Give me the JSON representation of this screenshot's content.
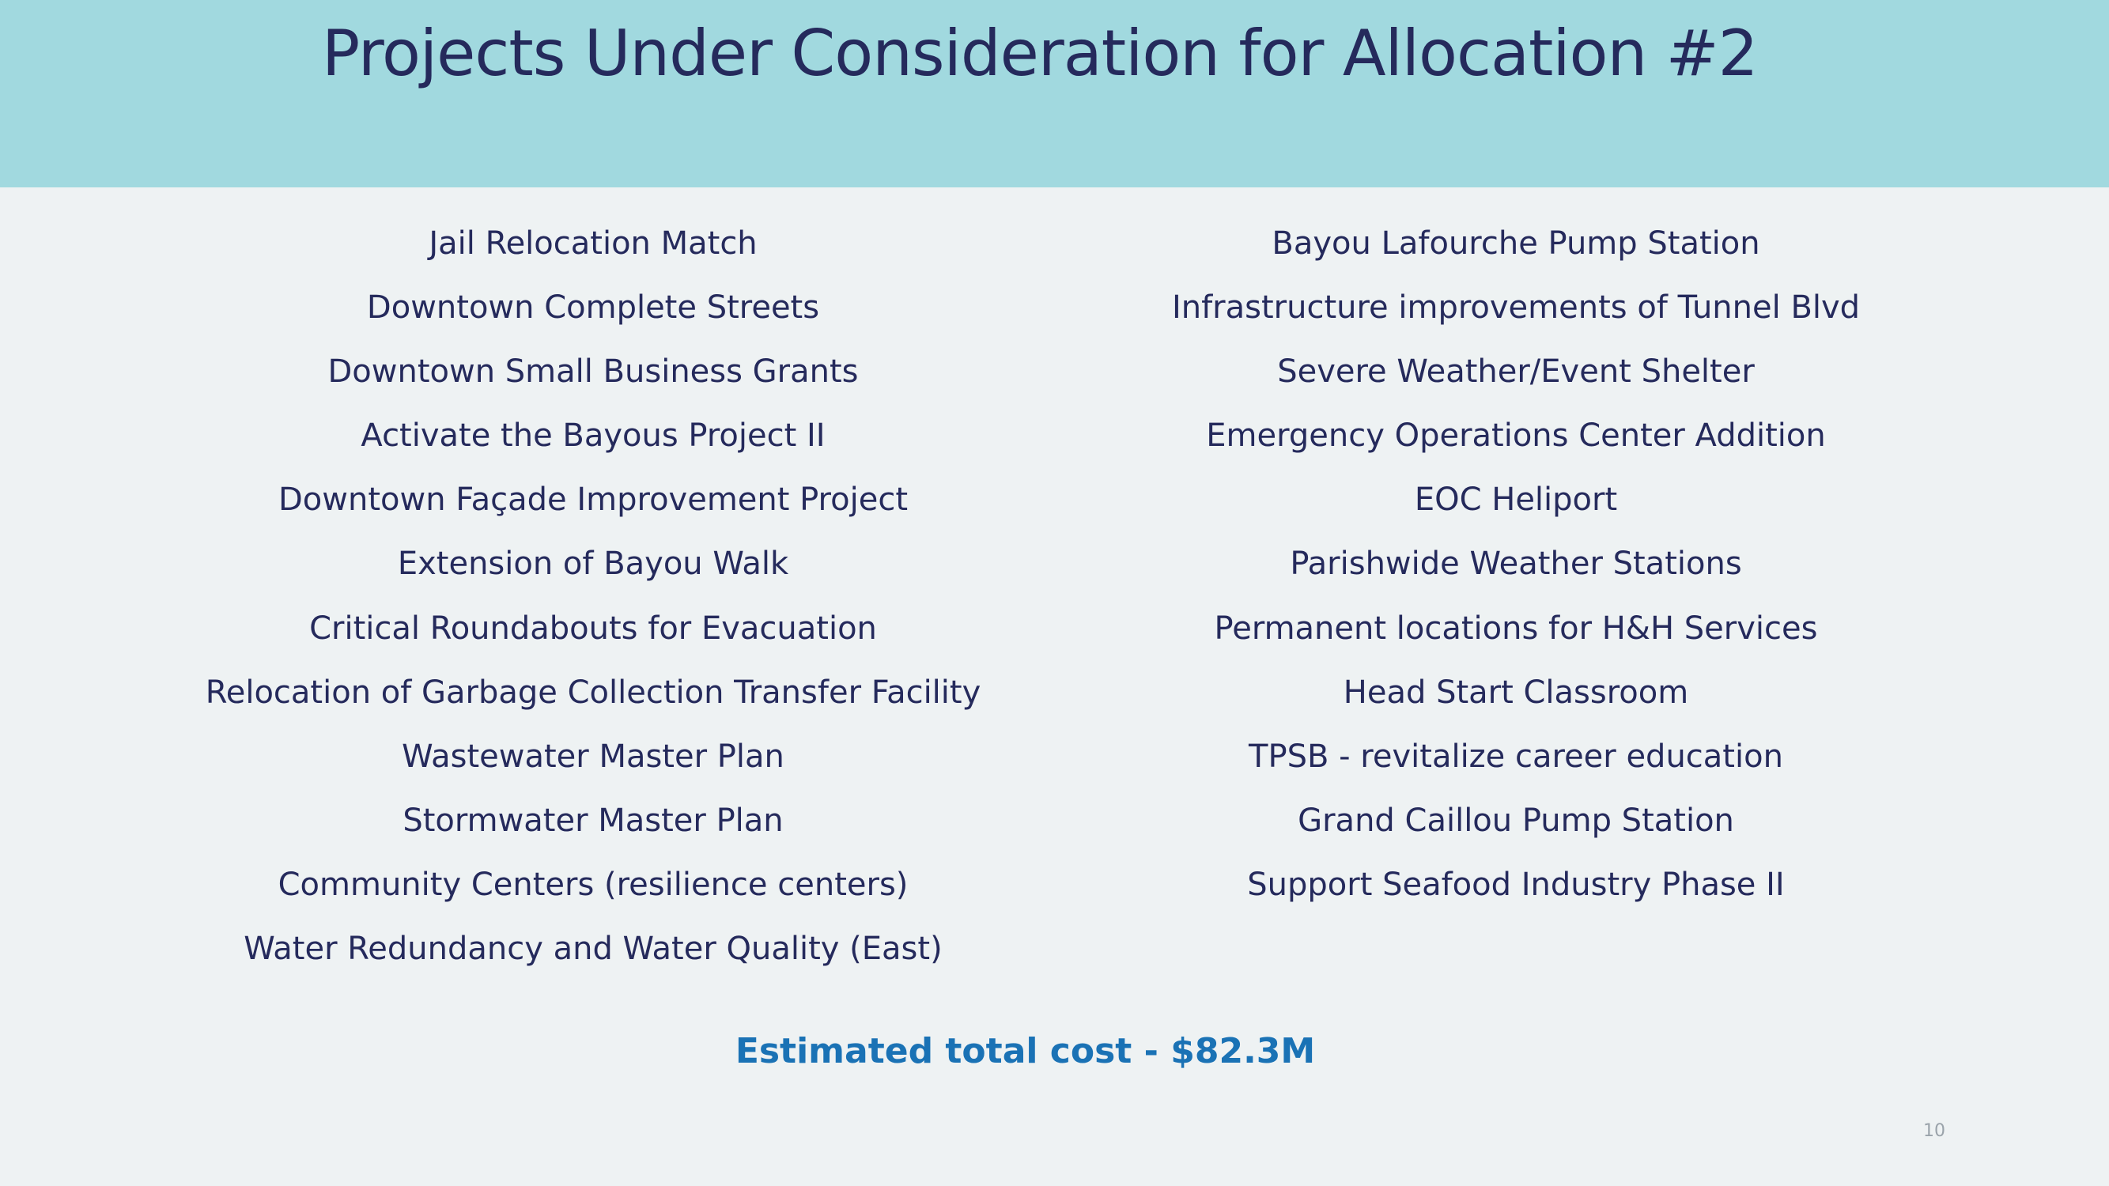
{
  "slide": {
    "title": "Projects Under Consideration for Allocation #2",
    "left_projects": [
      "Jail Relocation Match",
      "Downtown Complete Streets",
      "Downtown Small Business Grants",
      "Activate the Bayous Project II",
      "Downtown Façade Improvement Project",
      "Extension of Bayou Walk",
      "Critical Roundabouts for Evacuation",
      "Relocation of Garbage Collection Transfer Facility",
      "Wastewater Master Plan",
      "Stormwater Master Plan",
      "Community Centers (resilience centers)",
      "Water Redundancy and Water Quality (East)"
    ],
    "right_projects": [
      "Bayou Lafourche Pump Station",
      "Infrastructure improvements of Tunnel Blvd",
      "Severe Weather/Event Shelter",
      "Emergency Operations Center Addition",
      "EOC Heliport",
      "Parishwide Weather Stations",
      "Permanent locations for H&H Services",
      "Head Start Classroom",
      "TPSB - revitalize career education",
      "Grand Caillou Pump Station",
      "Support Seafood Industry Phase II"
    ],
    "total_cost": "Estimated total cost - $82.3M",
    "page_number": "10"
  },
  "colors": {
    "header_bg": "#a1d9df",
    "page_bg": "#eef2f3",
    "title_text": "#252a5c",
    "body_text": "#252a5c",
    "accent_total": "#1a72b5",
    "page_number_text": "#9aa3aa"
  }
}
